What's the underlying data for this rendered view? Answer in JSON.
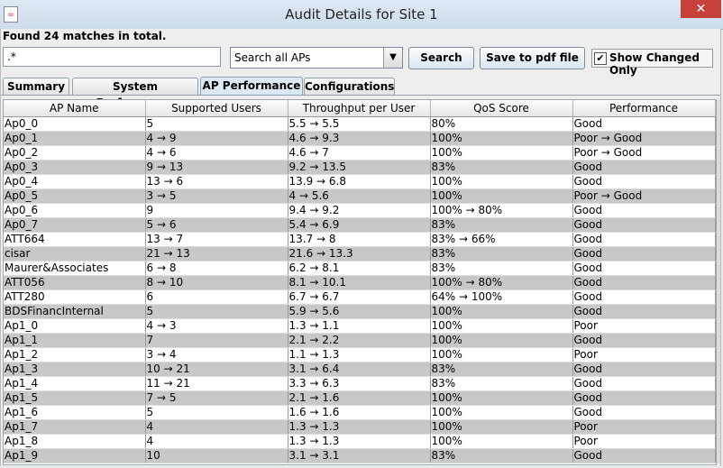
{
  "window": {
    "title": "Audit Details for Site 1",
    "close_glyph": "✕"
  },
  "status": {
    "found_text": "Found 24 matches in total."
  },
  "search": {
    "query": ".*"
  },
  "filter": {
    "selected": "Search all APs",
    "arrow": "▼"
  },
  "buttons": {
    "search": "Search",
    "save_pdf": "Save to pdf file"
  },
  "show_changed": {
    "label": "Show Changed Only",
    "checked": true,
    "mark": "✔"
  },
  "tabs": [
    {
      "label": "Summary",
      "active": false
    },
    {
      "label": "System Performance",
      "active": false
    },
    {
      "label": "AP Performance",
      "active": true
    },
    {
      "label": "Configurations",
      "active": false
    }
  ],
  "table": {
    "columns": [
      "AP Name",
      "Supported Users",
      "Throughput per User",
      "QoS Score",
      "Performance"
    ],
    "rows": [
      [
        "Ap0_0",
        "5",
        "5.5 → 5.5",
        "80%",
        "Good"
      ],
      [
        "Ap0_1",
        "4 → 9",
        "4.6 → 9.3",
        "100%",
        "Poor → Good"
      ],
      [
        "Ap0_2",
        "4 → 6",
        "4.6 → 7",
        "100%",
        "Poor → Good"
      ],
      [
        "Ap0_3",
        "9 → 13",
        "9.2 → 13.5",
        "83%",
        "Good"
      ],
      [
        "Ap0_4",
        "13 → 6",
        "13.9 → 6.8",
        "100%",
        "Good"
      ],
      [
        "Ap0_5",
        "3 → 5",
        "4 → 5.6",
        "100%",
        "Poor → Good"
      ],
      [
        "Ap0_6",
        "9",
        "9.4 → 9.2",
        "100% → 80%",
        "Good"
      ],
      [
        "Ap0_7",
        "5 → 6",
        "5.4 → 6.9",
        "83%",
        "Good"
      ],
      [
        "ATT664",
        "13 → 7",
        "13.7 → 8",
        "83% → 66%",
        "Good"
      ],
      [
        "cisar",
        "21 → 13",
        "21.6 → 13.3",
        "83%",
        "Good"
      ],
      [
        "Maurer&Associates",
        "6 → 8",
        "6.2 → 8.1",
        "83%",
        "Good"
      ],
      [
        "ATT056",
        "8 → 10",
        "8.1 → 10.1",
        "100% → 80%",
        "Good"
      ],
      [
        "ATT280",
        "6",
        "6.7 → 6.7",
        "64% → 100%",
        "Good"
      ],
      [
        "BDSFinancInternal",
        "5",
        "5.9 → 5.6",
        "100%",
        "Good"
      ],
      [
        "Ap1_0",
        "4 → 3",
        "1.3 → 1.1",
        "100%",
        "Poor"
      ],
      [
        "Ap1_1",
        "7",
        "2.1 → 2.2",
        "100%",
        "Good"
      ],
      [
        "Ap1_2",
        "3 → 4",
        "1.1 → 1.3",
        "100%",
        "Poor"
      ],
      [
        "Ap1_3",
        "10 → 21",
        "3.1 → 6.4",
        "83%",
        "Good"
      ],
      [
        "Ap1_4",
        "11 → 21",
        "3.3 → 6.3",
        "83%",
        "Good"
      ],
      [
        "Ap1_5",
        "7 → 5",
        "2.1 → 1.6",
        "100%",
        "Good"
      ],
      [
        "Ap1_6",
        "5",
        "1.6 → 1.6",
        "100%",
        "Good"
      ],
      [
        "Ap1_7",
        "4",
        "1.3 → 1.3",
        "100%",
        "Poor"
      ],
      [
        "Ap1_8",
        "4",
        "1.3 → 1.3",
        "100%",
        "Poor"
      ],
      [
        "Ap1_9",
        "10",
        "3.1 → 3.1",
        "83%",
        "Good"
      ]
    ]
  }
}
